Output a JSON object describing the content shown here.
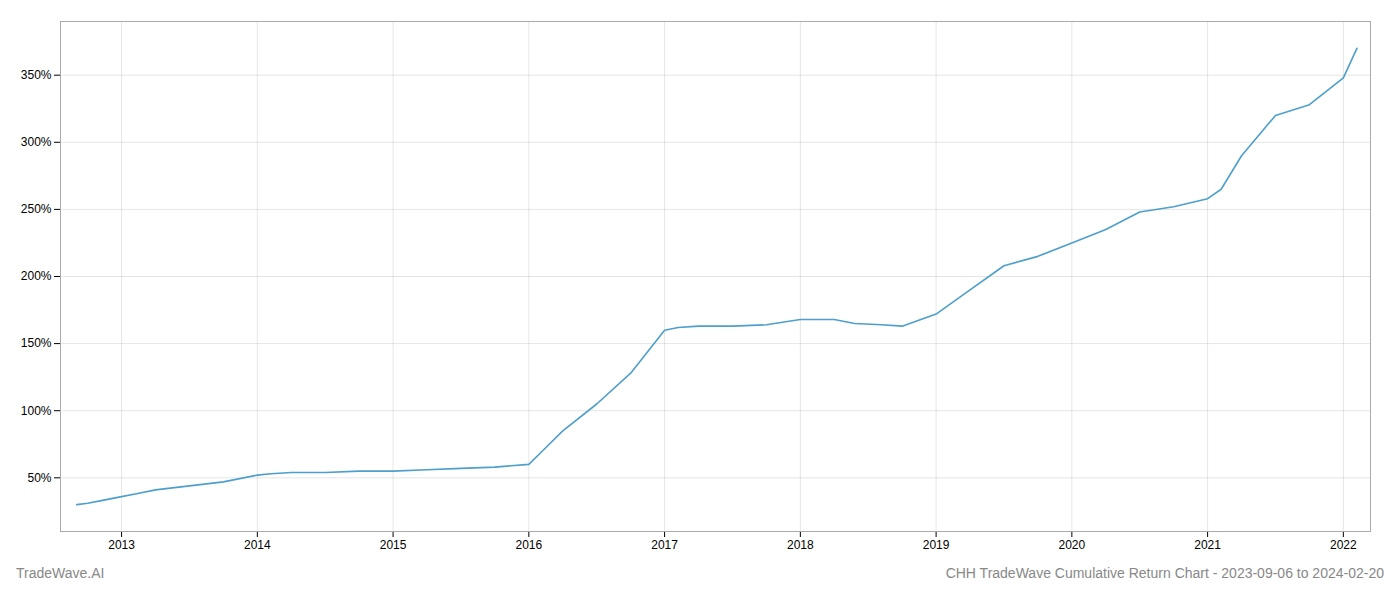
{
  "chart_data": {
    "type": "line",
    "title": "CHH TradeWave Cumulative Return Chart - 2023-09-06 to 2024-02-20",
    "annotations": [
      "TradeWave.AI"
    ],
    "x": [
      2012.67,
      2012.75,
      2012.85,
      2013.0,
      2013.1,
      2013.25,
      2013.5,
      2013.75,
      2014.0,
      2014.1,
      2014.25,
      2014.5,
      2014.75,
      2015.0,
      2015.25,
      2015.5,
      2015.75,
      2016.0,
      2016.1,
      2016.25,
      2016.5,
      2016.75,
      2017.0,
      2017.1,
      2017.25,
      2017.5,
      2017.75,
      2018.0,
      2018.25,
      2018.4,
      2018.6,
      2018.75,
      2019.0,
      2019.25,
      2019.5,
      2019.75,
      2020.0,
      2020.25,
      2020.5,
      2020.75,
      2021.0,
      2021.1,
      2021.25,
      2021.5,
      2021.75,
      2022.0,
      2022.1
    ],
    "values": [
      30,
      31,
      33,
      36,
      38,
      41,
      44,
      47,
      52,
      53,
      54,
      54,
      55,
      55,
      56,
      57,
      58,
      60,
      70,
      85,
      105,
      128,
      160,
      162,
      163,
      163,
      164,
      168,
      168,
      165,
      164,
      163,
      172,
      190,
      208,
      215,
      225,
      235,
      248,
      252,
      258,
      265,
      290,
      320,
      328,
      348,
      370
    ],
    "color": "#4d9fcc",
    "xlim": [
      2012.55,
      2022.2
    ],
    "xticks": [
      2013,
      2014,
      2015,
      2016,
      2017,
      2018,
      2019,
      2020,
      2021,
      2022
    ],
    "ylim": [
      10,
      390
    ],
    "yticks": [
      {
        "value": 50,
        "label": "50%"
      },
      {
        "value": 100,
        "label": "100%"
      },
      {
        "value": 150,
        "label": "150%"
      },
      {
        "value": 200,
        "label": "200%"
      },
      {
        "value": 250,
        "label": "250%"
      },
      {
        "value": 300,
        "label": "300%"
      },
      {
        "value": 350,
        "label": "350%"
      }
    ],
    "grid": true
  }
}
